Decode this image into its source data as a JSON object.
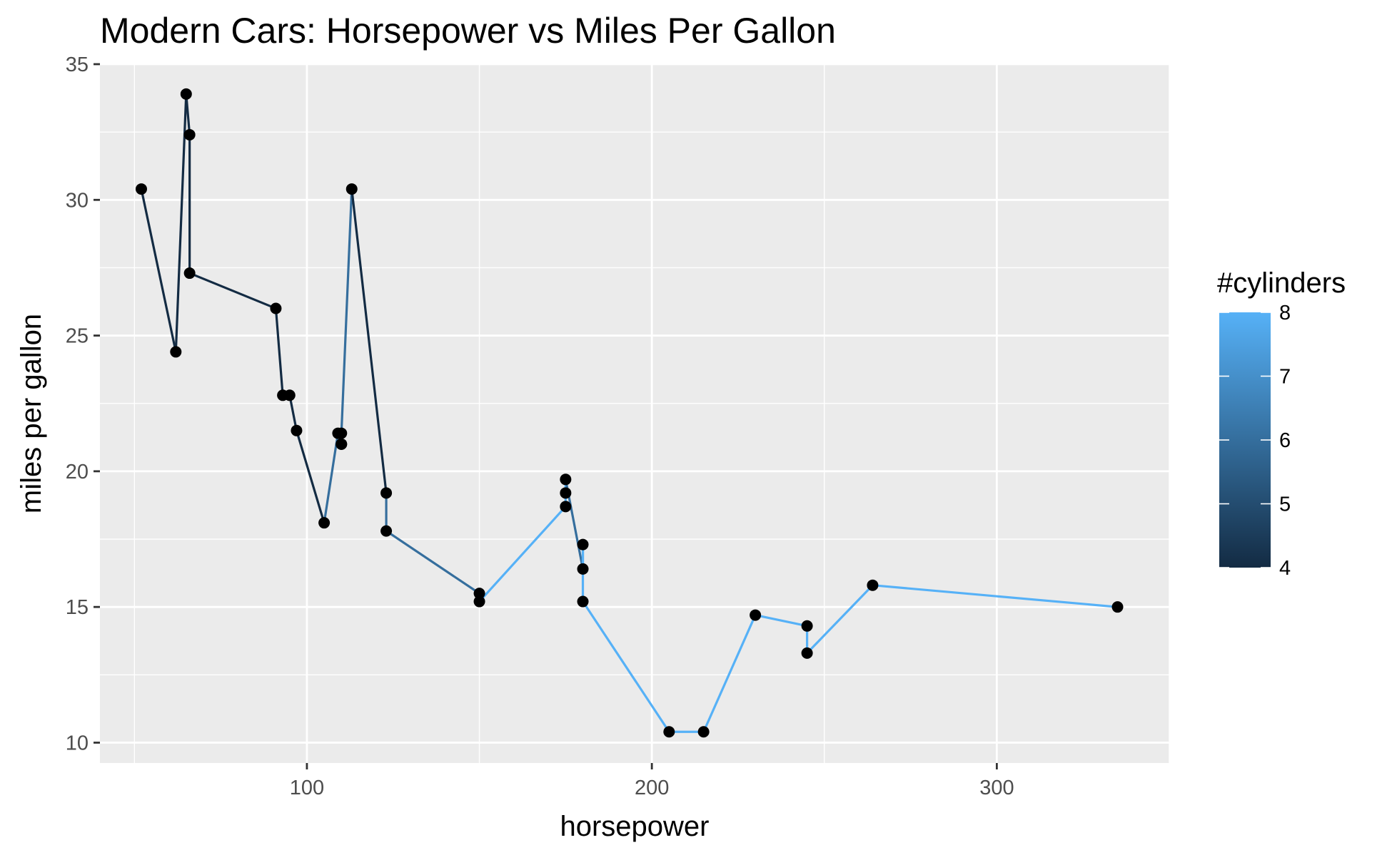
{
  "chart_data": {
    "type": "line",
    "title": "Modern Cars: Horsepower vs Miles Per Gallon",
    "xlabel": "horsepower",
    "ylabel": "miles per gallon",
    "xlim": [
      40,
      350
    ],
    "ylim": [
      9.25,
      35
    ],
    "xticks": [
      100,
      200,
      300
    ],
    "yticks": [
      10,
      15,
      20,
      25,
      30,
      35
    ],
    "grid": true,
    "legend": {
      "title": "#cylinders",
      "position": "right",
      "type": "colorbar",
      "range": [
        4,
        8
      ],
      "ticks": [
        4,
        5,
        6,
        7,
        8
      ],
      "low_color": "#132B43",
      "high_color": "#56B1F7"
    },
    "point_color": "#000000",
    "panel_background": "#EBEBEB",
    "points": [
      {
        "hp": 52,
        "mpg": 30.4,
        "cyl": 4
      },
      {
        "hp": 62,
        "mpg": 24.4,
        "cyl": 4
      },
      {
        "hp": 65,
        "mpg": 33.9,
        "cyl": 4
      },
      {
        "hp": 66,
        "mpg": 32.4,
        "cyl": 4
      },
      {
        "hp": 66,
        "mpg": 27.3,
        "cyl": 4
      },
      {
        "hp": 91,
        "mpg": 26.0,
        "cyl": 4
      },
      {
        "hp": 93,
        "mpg": 22.8,
        "cyl": 4
      },
      {
        "hp": 95,
        "mpg": 22.8,
        "cyl": 4
      },
      {
        "hp": 97,
        "mpg": 21.5,
        "cyl": 4
      },
      {
        "hp": 105,
        "mpg": 18.1,
        "cyl": 6
      },
      {
        "hp": 109,
        "mpg": 21.4,
        "cyl": 4
      },
      {
        "hp": 110,
        "mpg": 21.0,
        "cyl": 6
      },
      {
        "hp": 110,
        "mpg": 21.0,
        "cyl": 6
      },
      {
        "hp": 110,
        "mpg": 21.4,
        "cyl": 6
      },
      {
        "hp": 113,
        "mpg": 30.4,
        "cyl": 4
      },
      {
        "hp": 123,
        "mpg": 19.2,
        "cyl": 6
      },
      {
        "hp": 123,
        "mpg": 17.8,
        "cyl": 6
      },
      {
        "hp": 150,
        "mpg": 15.5,
        "cyl": 8
      },
      {
        "hp": 150,
        "mpg": 15.2,
        "cyl": 8
      },
      {
        "hp": 175,
        "mpg": 18.7,
        "cyl": 8
      },
      {
        "hp": 175,
        "mpg": 19.2,
        "cyl": 8
      },
      {
        "hp": 175,
        "mpg": 19.7,
        "cyl": 6
      },
      {
        "hp": 180,
        "mpg": 16.4,
        "cyl": 8
      },
      {
        "hp": 180,
        "mpg": 17.3,
        "cyl": 8
      },
      {
        "hp": 180,
        "mpg": 15.2,
        "cyl": 8
      },
      {
        "hp": 205,
        "mpg": 10.4,
        "cyl": 8
      },
      {
        "hp": 215,
        "mpg": 10.4,
        "cyl": 8
      },
      {
        "hp": 230,
        "mpg": 14.7,
        "cyl": 8
      },
      {
        "hp": 245,
        "mpg": 14.3,
        "cyl": 8
      },
      {
        "hp": 245,
        "mpg": 13.3,
        "cyl": 8
      },
      {
        "hp": 264,
        "mpg": 15.8,
        "cyl": 8
      },
      {
        "hp": 335,
        "mpg": 15.0,
        "cyl": 8
      }
    ]
  }
}
